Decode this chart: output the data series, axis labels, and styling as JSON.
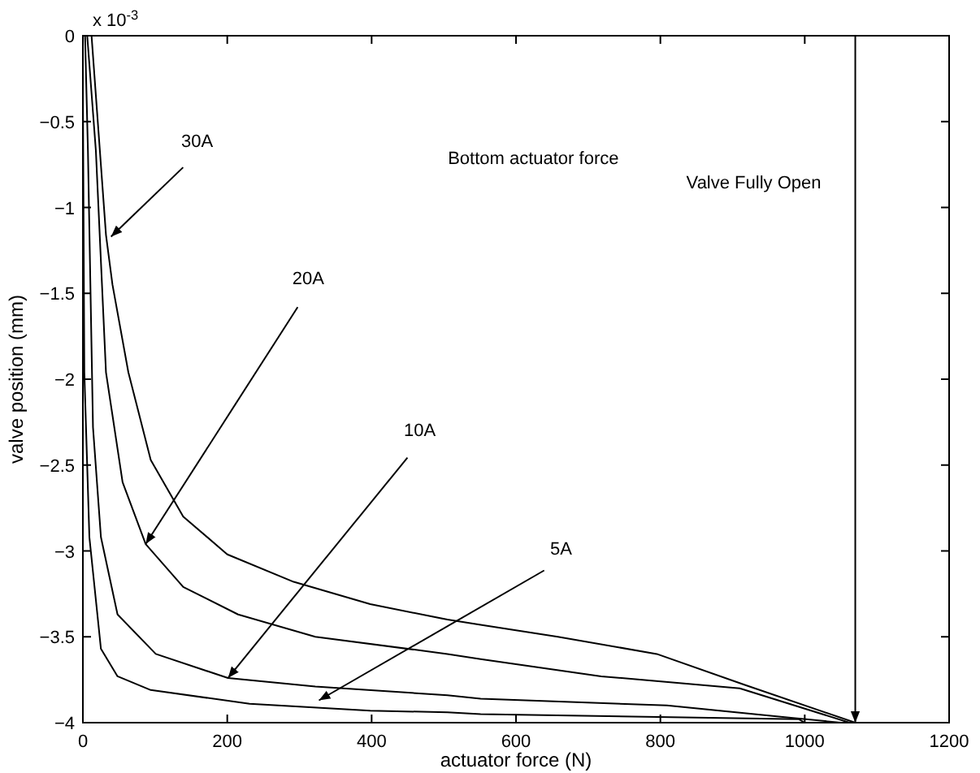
{
  "chart_data": {
    "type": "line",
    "xlabel": "actuator force (N)",
    "ylabel": "valve position (mm)",
    "xlim": [
      0,
      1200
    ],
    "ylim": [
      -4,
      0
    ],
    "xticks": [
      0,
      200,
      400,
      600,
      800,
      1000,
      1200
    ],
    "yticks": [
      -4,
      -3.5,
      -3,
      -2.5,
      -2,
      -1.5,
      -1,
      -0.5,
      0
    ],
    "grid": false,
    "ref_lines": [
      {
        "axis": "x",
        "value": 1070,
        "label": "Valve Fully Open",
        "color": "#000000"
      }
    ],
    "series": [
      {
        "color": "#000000",
        "x": [
          12,
          32,
          41,
          63,
          94,
          139,
          200,
          292,
          398,
          505,
          551,
          658,
          795,
          917,
          1070
        ],
        "values": [
          0,
          -1.16,
          -1.45,
          -1.96,
          -2.47,
          -2.8,
          -3.02,
          -3.18,
          -3.31,
          -3.4,
          -3.43,
          -3.5,
          -3.6,
          -3.78,
          -4
        ]
      },
      {
        "color": "#000000",
        "x": [
          6,
          18,
          32,
          55,
          87,
          139,
          215,
          322,
          505,
          551,
          718,
          910,
          1062
        ],
        "values": [
          0,
          -0.67,
          -1.96,
          -2.6,
          -2.96,
          -3.21,
          -3.37,
          -3.5,
          -3.6,
          -3.63,
          -3.73,
          -3.8,
          -4
        ]
      },
      {
        "color": "#000000",
        "x": [
          3,
          7,
          14,
          25,
          48,
          101,
          201,
          322,
          505,
          551,
          809,
          978,
          1050
        ],
        "values": [
          0,
          -0.67,
          -2.28,
          -2.92,
          -3.37,
          -3.6,
          -3.74,
          -3.79,
          -3.84,
          -3.86,
          -3.9,
          -3.97,
          -4
        ]
      },
      {
        "color": "#000000",
        "x": [
          0,
          2,
          9,
          25,
          48,
          94,
          231,
          398,
          505,
          551,
          992,
          1000
        ],
        "values": [
          -0.3,
          -1.96,
          -2.92,
          -3.57,
          -3.73,
          -3.81,
          -3.89,
          -3.93,
          -3.94,
          -3.95,
          -3.98,
          -4
        ]
      }
    ],
    "annotations": [
      "x 10$^{-3}$",
      "Bottom actuator force",
      {
        "text": "30A",
        "x": 39,
        "y": -1.17
      },
      {
        "text": "20A",
        "x": 87,
        "y": -2.96
      },
      {
        "text": "10A",
        "x": 201,
        "y": -3.74
      },
      {
        "text": "5A",
        "x": 327,
        "y": -3.87
      }
    ]
  }
}
